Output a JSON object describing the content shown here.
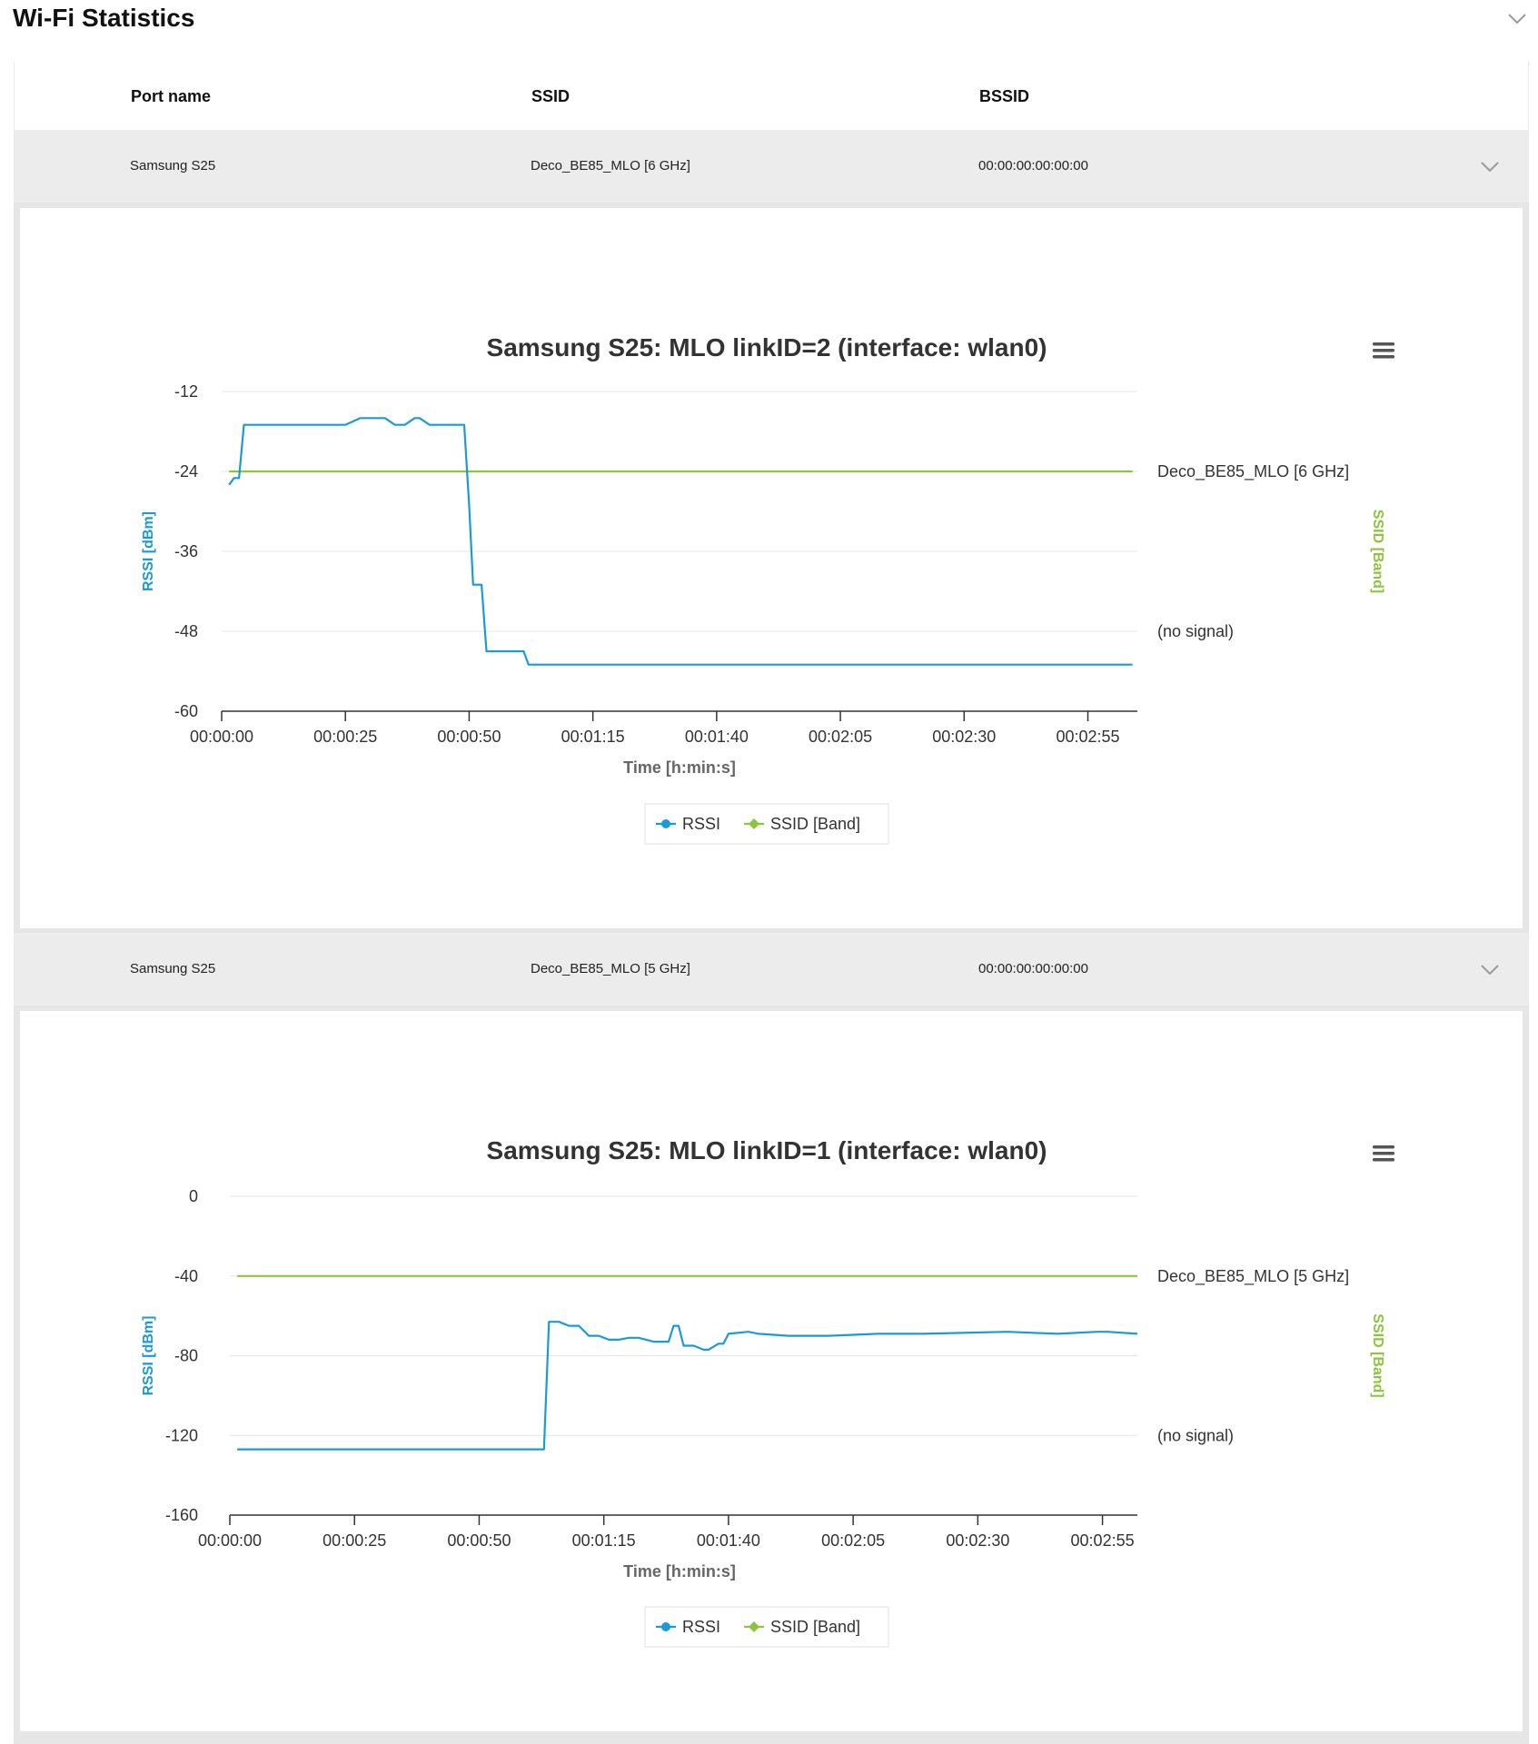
{
  "section": {
    "title": "Wi-Fi Statistics",
    "collapse_icon": "chevron-down-icon"
  },
  "columns": {
    "port_name": "Port name",
    "ssid": "SSID",
    "bssid": "BSSID"
  },
  "rows": [
    {
      "port_name": "Samsung S25",
      "ssid": "Deco_BE85_MLO [6 GHz]",
      "bssid": "00:00:00:00:00:00",
      "chart_data": {
        "type": "line",
        "title": "Samsung S25: MLO linkID=2 (interface: wlan0)",
        "xlabel": "Time [h:min:s]",
        "ylabel": "RSSI [dBm]",
        "y2label": "SSID [Band]",
        "ylim": [
          -60,
          -12
        ],
        "yticks": [
          -12,
          -24,
          -36,
          -48,
          -60
        ],
        "xlim": [
          0,
          185
        ],
        "xticks": [
          0,
          25,
          50,
          75,
          100,
          125,
          150,
          175
        ],
        "xtick_labels": [
          "00:00:00",
          "00:00:25",
          "00:00:50",
          "00:01:15",
          "00:01:40",
          "00:02:05",
          "00:02:30",
          "00:02:55"
        ],
        "y2_categories": [
          "Deco_BE85_MLO [6 GHz]",
          "(no signal)"
        ],
        "y2_positions": [
          -24,
          -48
        ],
        "grid": true,
        "legend_placement": "bottom-center",
        "series": [
          {
            "name": "RSSI",
            "color": "#1a9ad6",
            "x": [
              1.5,
              2.5,
              3.5,
              4.5,
              25,
              28,
              33,
              35,
              37,
              39,
              40,
              42,
              49,
              50,
              50.8,
              52.5,
              53.5,
              56,
              61,
              62,
              184
            ],
            "y": [
              -26,
              -25,
              -25,
              -17,
              -17,
              -16,
              -16,
              -17,
              -17,
              -16,
              -16,
              -17,
              -17,
              -29,
              -41,
              -41,
              -51,
              -51,
              -51,
              -53,
              -53
            ]
          },
          {
            "name": "SSID [Band]",
            "color": "#8cc43f",
            "x": [
              1.5,
              184
            ],
            "y": [
              -24,
              -24
            ]
          }
        ]
      }
    },
    {
      "port_name": "Samsung S25",
      "ssid": "Deco_BE85_MLO [5 GHz]",
      "bssid": "00:00:00:00:00:00",
      "chart_data": {
        "type": "line",
        "title": "Samsung S25: MLO linkID=1 (interface: wlan0)",
        "xlabel": "Time [h:min:s]",
        "ylabel": "RSSI [dBm]",
        "y2label": "SSID [Band]",
        "ylim": [
          -160,
          0
        ],
        "yticks": [
          0,
          -40,
          -80,
          -120,
          -160
        ],
        "xlim": [
          0,
          182
        ],
        "xticks": [
          0,
          25,
          50,
          75,
          100,
          125,
          150,
          175
        ],
        "xtick_labels": [
          "00:00:00",
          "00:00:25",
          "00:00:50",
          "00:01:15",
          "00:01:40",
          "00:02:05",
          "00:02:30",
          "00:02:55"
        ],
        "y2_categories": [
          "Deco_BE85_MLO [5 GHz]",
          "(no signal)"
        ],
        "y2_positions": [
          -40,
          -120
        ],
        "grid": true,
        "legend_placement": "bottom-center",
        "series": [
          {
            "name": "RSSI",
            "color": "#1a9ad6",
            "x": [
              1.5,
              63,
              64,
              66,
              68,
              70,
              72,
              74,
              76,
              78,
              80,
              82,
              85,
              86,
              88,
              89,
              90,
              91,
              93,
              95,
              96,
              98,
              99,
              100,
              104,
              106,
              112,
              120,
              130,
              139,
              156,
              166,
              174,
              176,
              182
            ],
            "y": [
              -127,
              -127,
              -63,
              -63,
              -65,
              -65,
              -70,
              -70,
              -72,
              -72,
              -71,
              -71,
              -73,
              -73,
              -73,
              -65,
              -65,
              -75,
              -75,
              -77,
              -77,
              -74,
              -74,
              -69,
              -68,
              -69,
              -70,
              -70,
              -69,
              -69,
              -68,
              -69,
              -68,
              -68,
              -69
            ]
          },
          {
            "name": "SSID [Band]",
            "color": "#8cc43f",
            "x": [
              1.5,
              182
            ],
            "y": [
              -40,
              -40
            ]
          }
        ]
      }
    }
  ]
}
